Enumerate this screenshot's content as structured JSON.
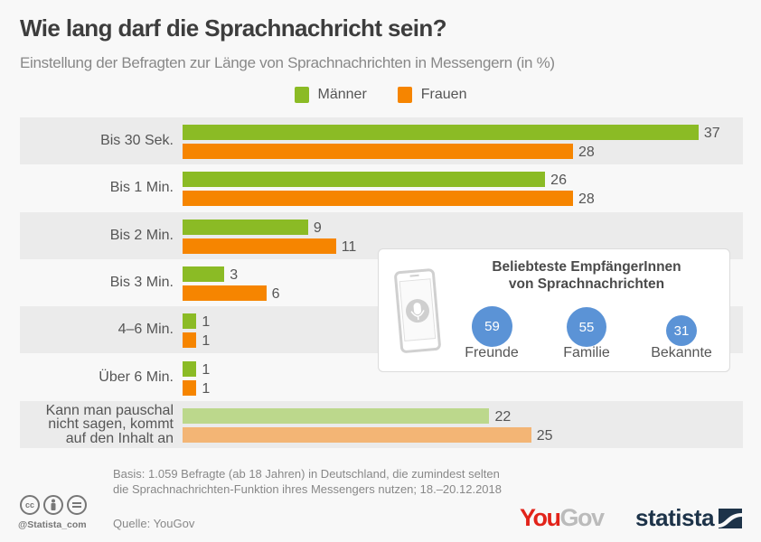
{
  "header": {
    "title": "Wie lang darf die Sprachnachricht sein?",
    "subtitle": "Einstellung der Befragten zur Länge von Sprachnachrichten in Messengern (in %)"
  },
  "colors": {
    "maenner": "#8bbb25",
    "frauen": "#f68500",
    "maenner_light": "#bcd88c",
    "frauen_light": "#f3b575",
    "row_bg": "#ebebeb",
    "bubble": "#5b93d6"
  },
  "chart_data": {
    "type": "bar",
    "orientation": "horizontal",
    "title": "Wie lang darf die Sprachnachricht sein?",
    "subtitle": "Einstellung der Befragten zur Länge von Sprachnachrichten in Messengern (in %)",
    "xlabel": "",
    "ylabel": "",
    "unit": "%",
    "legend_position": "top-center",
    "grid": false,
    "categories": [
      "Bis 30 Sek.",
      "Bis 1 Min.",
      "Bis 2 Min.",
      "Bis 3 Min.",
      "4–6 Min.",
      "Über 6 Min.",
      "Kann man pauschal nicht sagen, kommt auf den Inhalt an"
    ],
    "category_labels_display": [
      [
        "Bis 30 Sek."
      ],
      [
        "Bis 1 Min."
      ],
      [
        "Bis 2 Min."
      ],
      [
        "Bis 3 Min."
      ],
      [
        "4–6 Min."
      ],
      [
        "Über 6 Min."
      ],
      [
        "Kann man pauschal",
        "nicht sagen, kommt",
        "auf den Inhalt an"
      ]
    ],
    "series": [
      {
        "name": "Männer",
        "values": [
          37,
          26,
          9,
          3,
          1,
          1,
          22
        ]
      },
      {
        "name": "Frauen",
        "values": [
          28,
          28,
          11,
          6,
          1,
          1,
          25
        ]
      }
    ],
    "xlim": [
      0,
      40
    ]
  },
  "legend": [
    {
      "label": "Männer"
    },
    {
      "label": "Frauen"
    }
  ],
  "inset": {
    "title_line1": "Beliebteste EmpfängerInnen",
    "title_line2": "von Sprachnachrichten",
    "icon": "phone-microphone-icon",
    "items": [
      {
        "label": "Freunde",
        "value": 59
      },
      {
        "label": "Familie",
        "value": 55
      },
      {
        "label": "Bekannte",
        "value": 31
      }
    ]
  },
  "footer": {
    "handle": "@Statista_com",
    "basis": "Basis: 1.059 Befragte (ab 18 Jahren) in Deutschland, die zumindest selten die Sprachnachrichten-Funktion ihres Messengers nutzen; 18.–20.12.2018",
    "source": "Quelle: YouGov",
    "yougov_you": "You",
    "yougov_gov": "Gov",
    "statista": "statista",
    "cc_icons": [
      "cc",
      "by",
      "nd"
    ]
  }
}
